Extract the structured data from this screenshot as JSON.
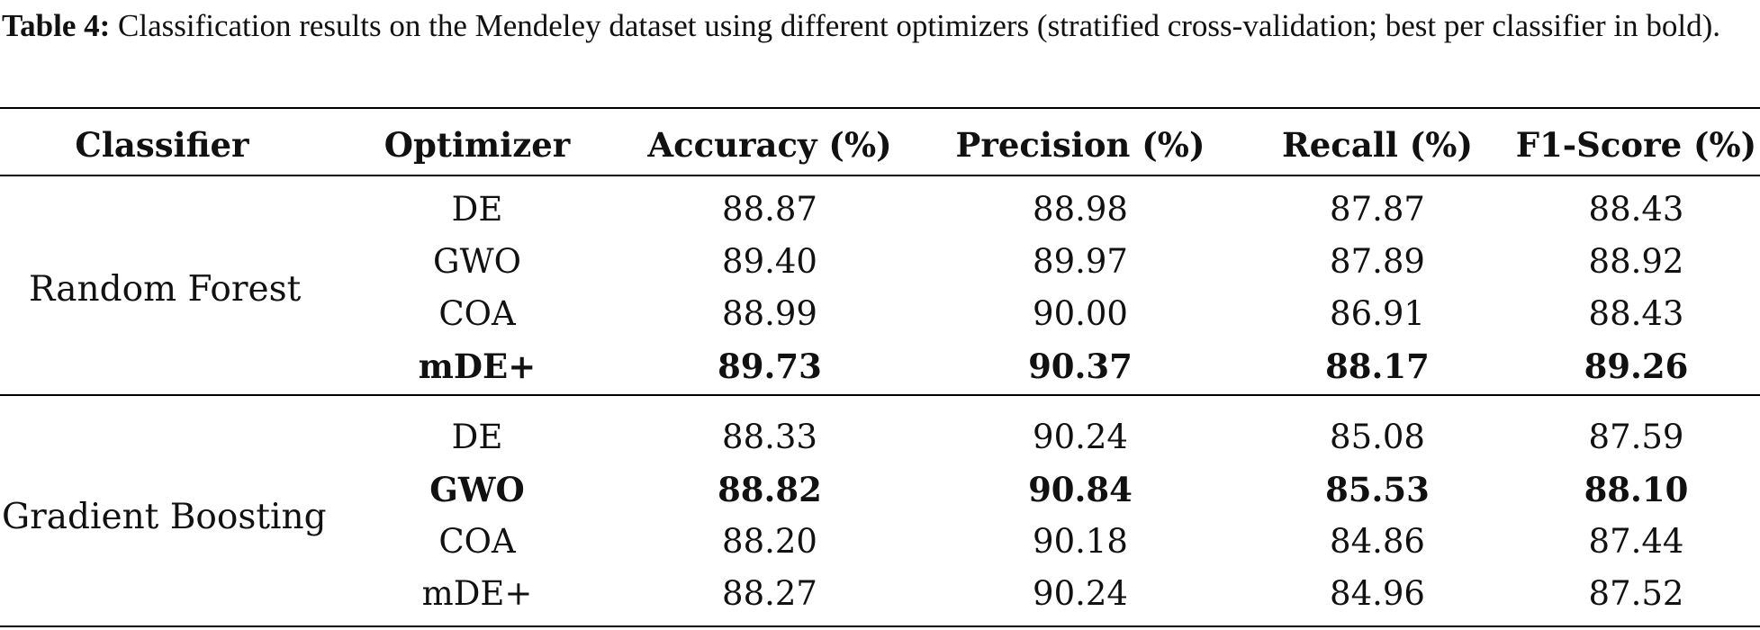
{
  "caption": {
    "label": "Table 4:",
    "text": "Classification results on the Mendeley dataset using different optimizers (stratified cross-validation; best per classifier in bold)."
  },
  "table": {
    "headers": [
      "Classifier",
      "Optimizer",
      "Accuracy (%)",
      "Precision (%)",
      "Recall (%)",
      "F1-Score (%)"
    ],
    "groups": [
      {
        "classifier": "Random Forest",
        "rows": [
          {
            "optimizer": "DE",
            "accuracy": "88.87",
            "precision": "88.98",
            "recall": "87.87",
            "f1": "88.43",
            "best": false
          },
          {
            "optimizer": "GWO",
            "accuracy": "89.40",
            "precision": "89.97",
            "recall": "87.89",
            "f1": "88.92",
            "best": false
          },
          {
            "optimizer": "COA",
            "accuracy": "88.99",
            "precision": "90.00",
            "recall": "86.91",
            "f1": "88.43",
            "best": false
          },
          {
            "optimizer": "mDE+",
            "accuracy": "89.73",
            "precision": "90.37",
            "recall": "88.17",
            "f1": "89.26",
            "best": true
          }
        ]
      },
      {
        "classifier": "Gradient Boosting",
        "rows": [
          {
            "optimizer": "DE",
            "accuracy": "88.33",
            "precision": "90.24",
            "recall": "85.08",
            "f1": "87.59",
            "best": false
          },
          {
            "optimizer": "GWO",
            "accuracy": "88.82",
            "precision": "90.84",
            "recall": "85.53",
            "f1": "88.10",
            "best": true
          },
          {
            "optimizer": "COA",
            "accuracy": "88.20",
            "precision": "90.18",
            "recall": "84.86",
            "f1": "87.44",
            "best": false
          },
          {
            "optimizer": "mDE+",
            "accuracy": "88.27",
            "precision": "90.24",
            "recall": "84.96",
            "f1": "87.52",
            "best": false
          }
        ]
      }
    ]
  }
}
